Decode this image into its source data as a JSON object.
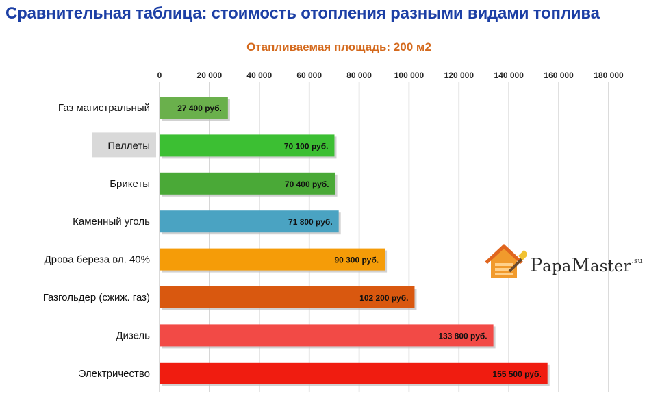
{
  "title": "Сравнительная таблица: стоимость отопления разными видами топлива",
  "subtitle": "Отапливаемая площадь: 200 м2",
  "logo": {
    "p": "P",
    "apa": "apa",
    "m": "M",
    "aster": "aster",
    "su": ".su"
  },
  "colors": {
    "title": "#1c3fa5",
    "subtitle": "#d4691c",
    "grid": "#cfcfcf",
    "highlight": "#d9d9d9"
  },
  "chart_data": {
    "type": "bar",
    "orientation": "horizontal",
    "xlim": [
      0,
      180000
    ],
    "ticks": [
      0,
      20000,
      40000,
      60000,
      80000,
      100000,
      120000,
      140000,
      160000,
      180000
    ],
    "tick_labels": [
      "0",
      "20 000",
      "40 000",
      "60 000",
      "80 000",
      "100 000",
      "120 000",
      "140 000",
      "160 000",
      "180 000"
    ],
    "grid": true,
    "categories": [
      "Газ магистральный",
      "Пеллеты",
      "Брикеты",
      "Каменный уголь",
      "Дрова береза вл. 40%",
      "Газгольдер (сжиж. газ)",
      "Дизель",
      "Электричество"
    ],
    "values": [
      27400,
      70100,
      70400,
      71800,
      90300,
      102200,
      133800,
      155500
    ],
    "data_labels": [
      "27 400 руб.",
      "70 100 руб.",
      "70 400 руб.",
      "71 800 руб.",
      "90 300 руб.",
      "102 200 руб.",
      "133 800 руб.",
      "155 500 руб."
    ],
    "bar_colors": [
      "#6ab04c",
      "#3cbf33",
      "#4aa937",
      "#4aa3c2",
      "#f59c08",
      "#d9580f",
      "#f24a46",
      "#f01c10"
    ],
    "highlighted_category": "Пеллеты"
  }
}
